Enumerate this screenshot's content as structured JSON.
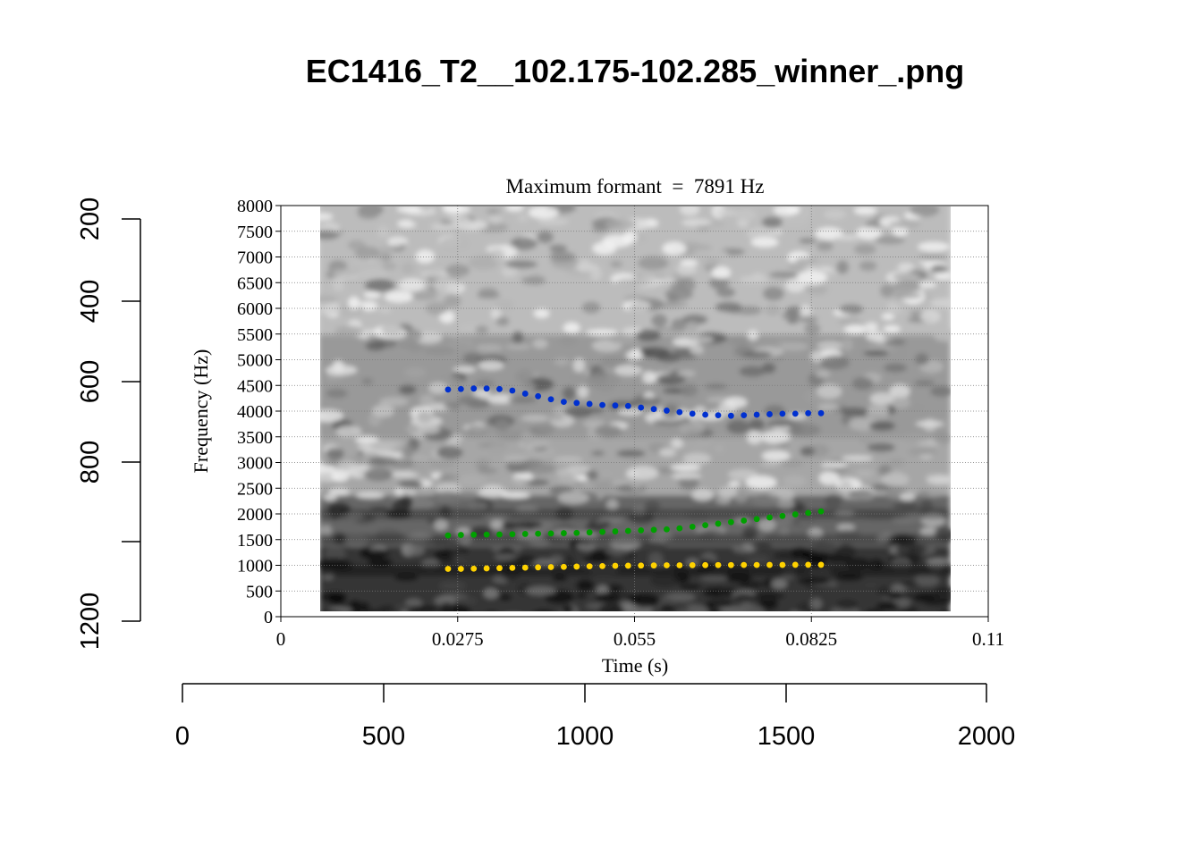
{
  "page_title": "EC1416_T2__102.175-102.285_winner_.png",
  "chart_data": {
    "type": "scatter",
    "title": "Maximum formant  =  7891 Hz",
    "xlabel": "Time (s)",
    "ylabel": "Frequency (Hz)",
    "xlim": [
      0,
      0.11
    ],
    "ylim": [
      0,
      8000
    ],
    "x_ticks": [
      0,
      0.0275,
      0.055,
      0.0825,
      0.11
    ],
    "x_tick_labels": [
      "0",
      "0.0275",
      "0.055",
      "0.0825",
      "0.11"
    ],
    "y_ticks": [
      0,
      500,
      1000,
      1500,
      2000,
      2500,
      3000,
      3500,
      4000,
      4500,
      5000,
      5500,
      6000,
      6500,
      7000,
      7500,
      8000
    ],
    "y_tick_labels": [
      "0",
      "500",
      "1000",
      "1500",
      "2000",
      "2500",
      "3000",
      "3500",
      "4000",
      "4500",
      "5000",
      "5500",
      "6000",
      "6500",
      "7000",
      "7500",
      "8000"
    ],
    "grid": true,
    "spectrogram_time_range": [
      0.006,
      0.104
    ],
    "spectrogram_dark_bands_hz": [
      900,
      1500,
      2000
    ],
    "x": [
      0.026,
      0.028,
      0.03,
      0.032,
      0.034,
      0.036,
      0.038,
      0.04,
      0.042,
      0.044,
      0.046,
      0.048,
      0.05,
      0.052,
      0.054,
      0.056,
      0.058,
      0.06,
      0.062,
      0.064,
      0.066,
      0.068,
      0.07,
      0.072,
      0.074,
      0.076,
      0.078,
      0.08,
      0.082,
      0.084
    ],
    "series": [
      {
        "color": "#ffd200",
        "values": [
          930,
          930,
          935,
          940,
          945,
          950,
          955,
          960,
          965,
          970,
          975,
          980,
          985,
          990,
          992,
          995,
          997,
          1000,
          1000,
          1002,
          1003,
          1005,
          1005,
          1006,
          1007,
          1008,
          1008,
          1010,
          1010,
          1010
        ]
      },
      {
        "color": "#00a000",
        "values": [
          1580,
          1590,
          1595,
          1598,
          1600,
          1605,
          1610,
          1615,
          1620,
          1625,
          1630,
          1640,
          1650,
          1660,
          1670,
          1680,
          1690,
          1700,
          1720,
          1750,
          1780,
          1810,
          1840,
          1870,
          1900,
          1930,
          1960,
          1990,
          2020,
          2050
        ]
      },
      {
        "color": "#0030d0",
        "values": [
          4420,
          4430,
          4440,
          4440,
          4430,
          4400,
          4340,
          4290,
          4230,
          4180,
          4160,
          4140,
          4120,
          4110,
          4100,
          4070,
          4040,
          4010,
          3980,
          3950,
          3930,
          3920,
          3910,
          3920,
          3930,
          3940,
          3950,
          3950,
          3960,
          3960
        ]
      }
    ]
  },
  "outer_axes": {
    "left": {
      "tick_labels": [
        "200",
        "400",
        "600",
        "800",
        "",
        "1200"
      ]
    },
    "bottom": {
      "tick_labels": [
        "0",
        "500",
        "1000",
        "1500",
        "2000"
      ]
    }
  }
}
